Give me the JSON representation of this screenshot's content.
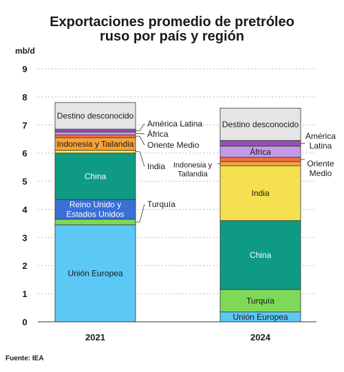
{
  "chart_data": {
    "type": "bar",
    "stacked": true,
    "title": "Exportaciones promedio de pretróleo ruso por país y región",
    "title_lines": [
      "Exportaciones promedio de pretróleo",
      "ruso por país y región"
    ],
    "ylabel": "mb/d",
    "ylim": [
      0,
      9
    ],
    "yticks": [
      "0",
      "1",
      "2",
      "3",
      "4",
      "5",
      "6",
      "7",
      "8",
      "9"
    ],
    "grid": true,
    "categories": [
      "2021",
      "2024"
    ],
    "series": [
      {
        "name": "Unión Europea",
        "color": "#5bc8f5",
        "values": [
          3.45,
          0.35
        ]
      },
      {
        "name": "Turquía",
        "color": "#7ed957",
        "values": [
          0.2,
          0.8
        ]
      },
      {
        "name": "Reino Unido y Estados Unidos",
        "color": "#3a6fd8",
        "values": [
          0.7,
          0.0
        ]
      },
      {
        "name": "China",
        "color": "#0f9a84",
        "values": [
          1.65,
          2.45
        ]
      },
      {
        "name": "India",
        "color": "#f5e04f",
        "values": [
          0.1,
          1.95
        ]
      },
      {
        "name": "Indonesia y Tailandia",
        "color": "#f7a23a",
        "values": [
          0.45,
          0.15
        ]
      },
      {
        "name": "Oriente Medio",
        "color": "#f2703c",
        "values": [
          0.1,
          0.15
        ]
      },
      {
        "name": "África",
        "color": "#c39ae6",
        "values": [
          0.1,
          0.4
        ]
      },
      {
        "name": "América Latina",
        "color": "#9a4fb5",
        "values": [
          0.1,
          0.2
        ]
      },
      {
        "name": "Destino desconocido",
        "color": "#e5e5e5",
        "values": [
          0.95,
          1.15
        ]
      }
    ],
    "annotations": {
      "bar_2021": [
        {
          "series": "Destino desconocido",
          "text": "Destino desconocido",
          "position": "inside"
        },
        {
          "series": "América Latina",
          "text": "América Latina",
          "position": "right"
        },
        {
          "series": "África",
          "text": "África",
          "position": "right"
        },
        {
          "series": "Oriente Medio",
          "text": "Oriente Medio",
          "position": "right"
        },
        {
          "series": "Indonesia y Tailandia",
          "text": "Indonesia y Tailandia",
          "position": "inside"
        },
        {
          "series": "India",
          "text": "India",
          "position": "right"
        },
        {
          "series": "China",
          "text": "China",
          "position": "inside"
        },
        {
          "series": "Turquía",
          "text": "Turquía",
          "position": "right"
        },
        {
          "series": "Reino Unido y Estados Unidos",
          "text": "Reino Unido y\nEstados Unidos",
          "position": "inside"
        },
        {
          "series": "Unión Europea",
          "text": "Unión Europea",
          "position": "inside"
        }
      ],
      "bar_2024": [
        {
          "series": "Destino desconocido",
          "text": "Destino desconocido",
          "position": "inside"
        },
        {
          "series": "América Latina",
          "text": "América\nLatina",
          "position": "right"
        },
        {
          "series": "África",
          "text": "África",
          "position": "inside"
        },
        {
          "series": "Oriente Medio",
          "text": "Oriente\nMedio",
          "position": "right"
        },
        {
          "series": "Indonesia y Tailandia",
          "text": "Indonesia y\nTailandia",
          "position": "left"
        },
        {
          "series": "India",
          "text": "India",
          "position": "inside"
        },
        {
          "series": "China",
          "text": "China",
          "position": "inside"
        },
        {
          "series": "Turquía",
          "text": "Turquía",
          "position": "inside"
        },
        {
          "series": "Unión Europea",
          "text": "Unión Europea",
          "position": "inside"
        }
      ]
    }
  },
  "source_label": "Fuente: IEA",
  "colors": {
    "text": "#1a1a1a",
    "grid": "#b8b8b8",
    "bar_outline": "#333333",
    "leader": "#333333"
  }
}
